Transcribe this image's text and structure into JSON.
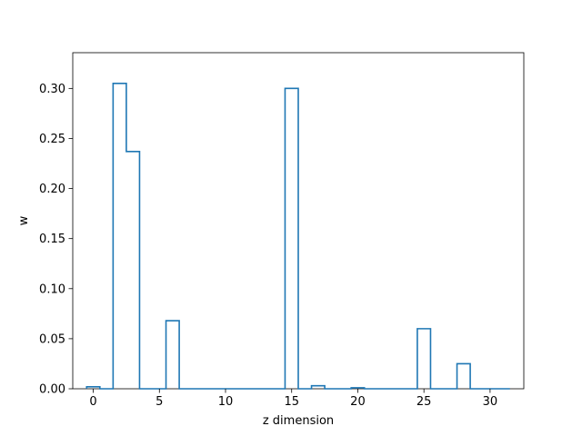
{
  "chart_data": {
    "type": "bar",
    "style": "step-histogram",
    "xlabel": "z dimension",
    "ylabel": "w",
    "xlim": [
      -1.55,
      32.55
    ],
    "ylim": [
      0,
      0.3357
    ],
    "xticks": [
      0,
      5,
      10,
      15,
      20,
      25,
      30
    ],
    "yticks": [
      0.0,
      0.05,
      0.1,
      0.15,
      0.2,
      0.25,
      0.3
    ],
    "x": [
      0,
      1,
      2,
      3,
      4,
      5,
      6,
      7,
      8,
      9,
      10,
      11,
      12,
      13,
      14,
      15,
      16,
      17,
      18,
      19,
      20,
      21,
      22,
      23,
      24,
      25,
      26,
      27,
      28,
      29,
      30,
      31
    ],
    "values": [
      0.002,
      0.0,
      0.305,
      0.237,
      0.0,
      0.0,
      0.068,
      0.0,
      0.0,
      0.0,
      0.0,
      0.0,
      0.0,
      0.0,
      0.0,
      0.3,
      0.0,
      0.003,
      0.0,
      0.0,
      0.001,
      0.0,
      0.0,
      0.0,
      0.0,
      0.06,
      0.0,
      0.0,
      0.025,
      0.0,
      0.0,
      0.0
    ],
    "color": "#1f77b4",
    "grid": false
  }
}
